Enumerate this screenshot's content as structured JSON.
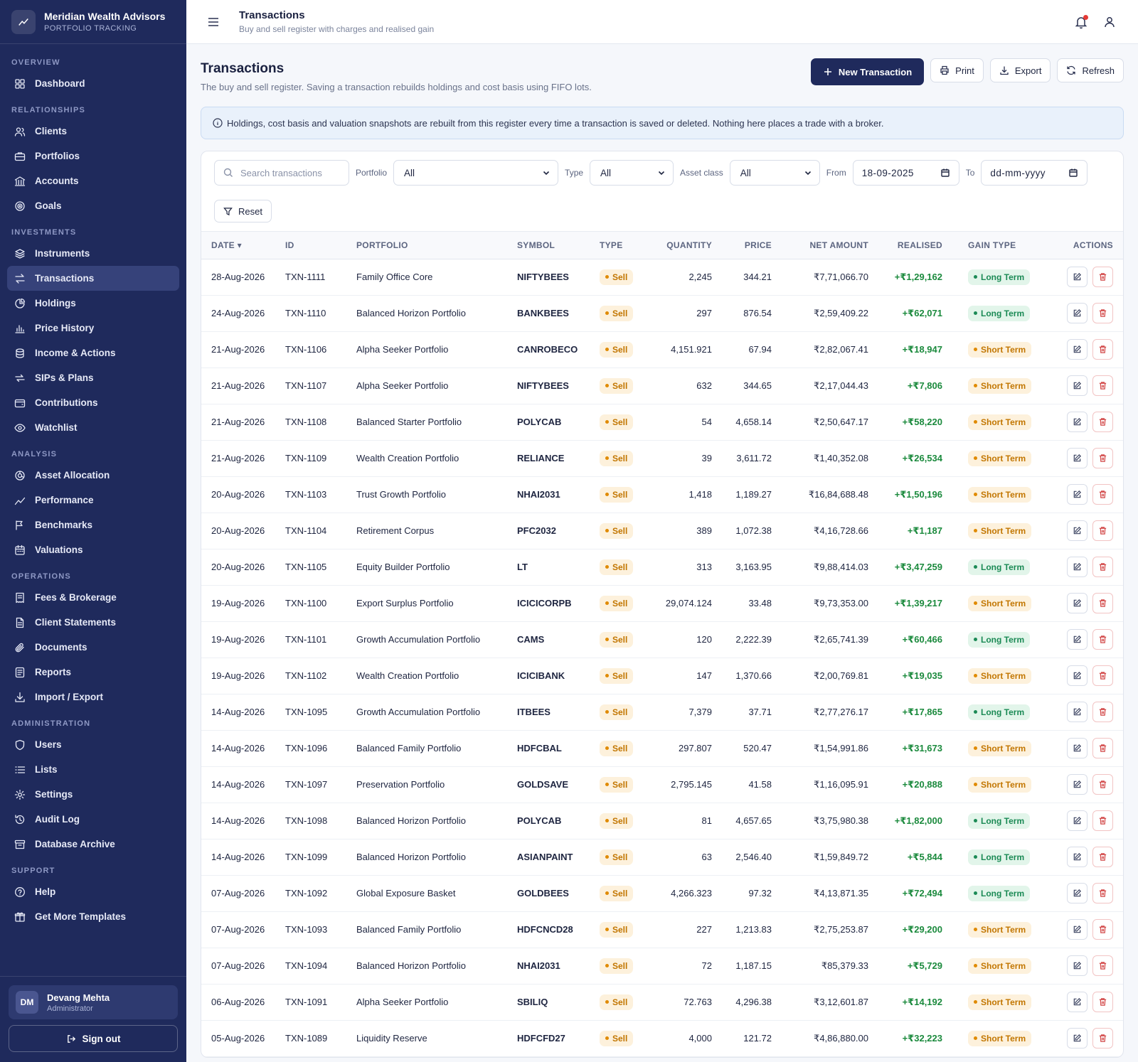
{
  "brand": {
    "name": "Meridian Wealth Advisors",
    "sub": "PORTFOLIO TRACKING"
  },
  "nav": [
    {
      "section": "OVERVIEW",
      "items": [
        {
          "label": "Dashboard",
          "icon": "grid-icon"
        }
      ]
    },
    {
      "section": "RELATIONSHIPS",
      "items": [
        {
          "label": "Clients",
          "icon": "users-icon"
        },
        {
          "label": "Portfolios",
          "icon": "briefcase-icon"
        },
        {
          "label": "Accounts",
          "icon": "bank-icon"
        },
        {
          "label": "Goals",
          "icon": "target-icon"
        }
      ]
    },
    {
      "section": "INVESTMENTS",
      "items": [
        {
          "label": "Instruments",
          "icon": "layers-icon"
        },
        {
          "label": "Transactions",
          "icon": "arrows-icon",
          "active": true
        },
        {
          "label": "Holdings",
          "icon": "pie-icon"
        },
        {
          "label": "Price History",
          "icon": "bar-chart-icon"
        },
        {
          "label": "Income & Actions",
          "icon": "coins-icon"
        },
        {
          "label": "SIPs & Plans",
          "icon": "repeat-icon"
        },
        {
          "label": "Contributions",
          "icon": "wallet-icon"
        },
        {
          "label": "Watchlist",
          "icon": "eye-icon"
        }
      ]
    },
    {
      "section": "ANALYSIS",
      "items": [
        {
          "label": "Asset Allocation",
          "icon": "donut-icon"
        },
        {
          "label": "Performance",
          "icon": "trend-icon"
        },
        {
          "label": "Benchmarks",
          "icon": "flag-icon"
        },
        {
          "label": "Valuations",
          "icon": "calendar-icon"
        }
      ]
    },
    {
      "section": "OPERATIONS",
      "items": [
        {
          "label": "Fees & Brokerage",
          "icon": "receipt-icon"
        },
        {
          "label": "Client Statements",
          "icon": "file-icon"
        },
        {
          "label": "Documents",
          "icon": "paperclip-icon"
        },
        {
          "label": "Reports",
          "icon": "report-icon"
        },
        {
          "label": "Import / Export",
          "icon": "download-icon"
        }
      ]
    },
    {
      "section": "ADMINISTRATION",
      "items": [
        {
          "label": "Users",
          "icon": "user-shield-icon"
        },
        {
          "label": "Lists",
          "icon": "list-icon"
        },
        {
          "label": "Settings",
          "icon": "gear-icon"
        },
        {
          "label": "Audit Log",
          "icon": "history-icon"
        },
        {
          "label": "Database Archive",
          "icon": "archive-icon"
        }
      ]
    },
    {
      "section": "SUPPORT",
      "items": [
        {
          "label": "Help",
          "icon": "help-icon"
        },
        {
          "label": "Get More Templates",
          "icon": "gift-icon"
        }
      ]
    }
  ],
  "user": {
    "initials": "DM",
    "name": "Devang Mehta",
    "role": "Administrator",
    "signout": "Sign out"
  },
  "topbar": {
    "title": "Transactions",
    "subtitle": "Buy and sell register with charges and realised gain"
  },
  "page": {
    "title": "Transactions",
    "subtitle": "The buy and sell register. Saving a transaction rebuilds holdings and cost basis using FIFO lots.",
    "buttons": {
      "new": "New Transaction",
      "print": "Print",
      "export": "Export",
      "refresh": "Refresh"
    },
    "info": "Holdings, cost basis and valuation snapshots are rebuilt from this register every time a transaction is saved or deleted. Nothing here places a trade with a broker."
  },
  "filters": {
    "search_placeholder": "Search transactions",
    "portfolio_label": "Portfolio",
    "portfolio_value": "All",
    "type_label": "Type",
    "type_value": "All",
    "asset_label": "Asset class",
    "asset_value": "All",
    "from_label": "From",
    "from_value": "18-09-2025",
    "to_label": "To",
    "to_value": "dd-mm-yyyy",
    "reset": "Reset"
  },
  "table": {
    "headers": {
      "date": "DATE",
      "id": "ID",
      "portfolio": "PORTFOLIO",
      "symbol": "SYMBOL",
      "type": "TYPE",
      "quantity": "QUANTITY",
      "price": "PRICE",
      "net": "NET AMOUNT",
      "realised": "REALISED",
      "gain_type": "GAIN TYPE",
      "actions": "ACTIONS"
    },
    "rows": [
      [
        "28-Aug-2026",
        "TXN-1111",
        "Family Office Core",
        "NIFTYBEES",
        "Sell",
        "2,245",
        "344.21",
        "₹7,71,066.70",
        "+₹1,29,162",
        "Long Term"
      ],
      [
        "24-Aug-2026",
        "TXN-1110",
        "Balanced Horizon Portfolio",
        "BANKBEES",
        "Sell",
        "297",
        "876.54",
        "₹2,59,409.22",
        "+₹62,071",
        "Long Term"
      ],
      [
        "21-Aug-2026",
        "TXN-1106",
        "Alpha Seeker Portfolio",
        "CANROBECO",
        "Sell",
        "4,151.921",
        "67.94",
        "₹2,82,067.41",
        "+₹18,947",
        "Short Term"
      ],
      [
        "21-Aug-2026",
        "TXN-1107",
        "Alpha Seeker Portfolio",
        "NIFTYBEES",
        "Sell",
        "632",
        "344.65",
        "₹2,17,044.43",
        "+₹7,806",
        "Short Term"
      ],
      [
        "21-Aug-2026",
        "TXN-1108",
        "Balanced Starter Portfolio",
        "POLYCAB",
        "Sell",
        "54",
        "4,658.14",
        "₹2,50,647.17",
        "+₹58,220",
        "Short Term"
      ],
      [
        "21-Aug-2026",
        "TXN-1109",
        "Wealth Creation Portfolio",
        "RELIANCE",
        "Sell",
        "39",
        "3,611.72",
        "₹1,40,352.08",
        "+₹26,534",
        "Short Term"
      ],
      [
        "20-Aug-2026",
        "TXN-1103",
        "Trust Growth Portfolio",
        "NHAI2031",
        "Sell",
        "1,418",
        "1,189.27",
        "₹16,84,688.48",
        "+₹1,50,196",
        "Short Term"
      ],
      [
        "20-Aug-2026",
        "TXN-1104",
        "Retirement Corpus",
        "PFC2032",
        "Sell",
        "389",
        "1,072.38",
        "₹4,16,728.66",
        "+₹1,187",
        "Short Term"
      ],
      [
        "20-Aug-2026",
        "TXN-1105",
        "Equity Builder Portfolio",
        "LT",
        "Sell",
        "313",
        "3,163.95",
        "₹9,88,414.03",
        "+₹3,47,259",
        "Long Term"
      ],
      [
        "19-Aug-2026",
        "TXN-1100",
        "Export Surplus Portfolio",
        "ICICICORPB",
        "Sell",
        "29,074.124",
        "33.48",
        "₹9,73,353.00",
        "+₹1,39,217",
        "Short Term"
      ],
      [
        "19-Aug-2026",
        "TXN-1101",
        "Growth Accumulation Portfolio",
        "CAMS",
        "Sell",
        "120",
        "2,222.39",
        "₹2,65,741.39",
        "+₹60,466",
        "Long Term"
      ],
      [
        "19-Aug-2026",
        "TXN-1102",
        "Wealth Creation Portfolio",
        "ICICIBANK",
        "Sell",
        "147",
        "1,370.66",
        "₹2,00,769.81",
        "+₹19,035",
        "Short Term"
      ],
      [
        "14-Aug-2026",
        "TXN-1095",
        "Growth Accumulation Portfolio",
        "ITBEES",
        "Sell",
        "7,379",
        "37.71",
        "₹2,77,276.17",
        "+₹17,865",
        "Long Term"
      ],
      [
        "14-Aug-2026",
        "TXN-1096",
        "Balanced Family Portfolio",
        "HDFCBAL",
        "Sell",
        "297.807",
        "520.47",
        "₹1,54,991.86",
        "+₹31,673",
        "Short Term"
      ],
      [
        "14-Aug-2026",
        "TXN-1097",
        "Preservation Portfolio",
        "GOLDSAVE",
        "Sell",
        "2,795.145",
        "41.58",
        "₹1,16,095.91",
        "+₹20,888",
        "Short Term"
      ],
      [
        "14-Aug-2026",
        "TXN-1098",
        "Balanced Horizon Portfolio",
        "POLYCAB",
        "Sell",
        "81",
        "4,657.65",
        "₹3,75,980.38",
        "+₹1,82,000",
        "Long Term"
      ],
      [
        "14-Aug-2026",
        "TXN-1099",
        "Balanced Horizon Portfolio",
        "ASIANPAINT",
        "Sell",
        "63",
        "2,546.40",
        "₹1,59,849.72",
        "+₹5,844",
        "Long Term"
      ],
      [
        "07-Aug-2026",
        "TXN-1092",
        "Global Exposure Basket",
        "GOLDBEES",
        "Sell",
        "4,266.323",
        "97.32",
        "₹4,13,871.35",
        "+₹72,494",
        "Long Term"
      ],
      [
        "07-Aug-2026",
        "TXN-1093",
        "Balanced Family Portfolio",
        "HDFCNCD28",
        "Sell",
        "227",
        "1,213.83",
        "₹2,75,253.87",
        "+₹29,200",
        "Short Term"
      ],
      [
        "07-Aug-2026",
        "TXN-1094",
        "Balanced Horizon Portfolio",
        "NHAI2031",
        "Sell",
        "72",
        "1,187.15",
        "₹85,379.33",
        "+₹5,729",
        "Short Term"
      ],
      [
        "06-Aug-2026",
        "TXN-1091",
        "Alpha Seeker Portfolio",
        "SBILIQ",
        "Sell",
        "72.763",
        "4,296.38",
        "₹3,12,601.87",
        "+₹14,192",
        "Short Term"
      ],
      [
        "05-Aug-2026",
        "TXN-1089",
        "Liquidity Reserve",
        "HDFCFD27",
        "Sell",
        "4,000",
        "121.72",
        "₹4,86,880.00",
        "+₹32,223",
        "Short Term"
      ]
    ]
  }
}
